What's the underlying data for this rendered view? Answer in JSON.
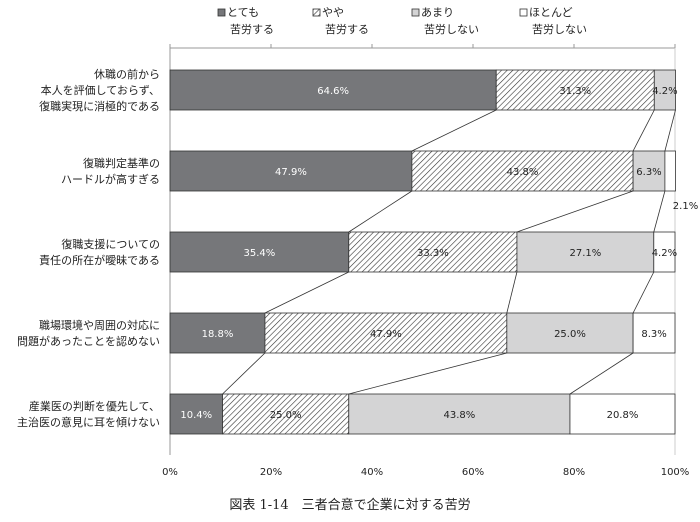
{
  "chart_data": {
    "type": "bar",
    "orientation": "horizontal",
    "stacked": true,
    "caption": "図表 1-14　三者合意で企業に対する苦労",
    "categories": [
      [
        "休職の前から",
        "本人を評価しておらず、",
        "復職実現に消極的である"
      ],
      [
        "復職判定基準の",
        "ハードルが高すぎる"
      ],
      [
        "復職支援についての",
        "責任の所在が曖昧である"
      ],
      [
        "職場環境や周囲の対応に",
        "問題があったことを認めない"
      ],
      [
        "産業医の判断を優先して、",
        "主治医の意見に耳を傾けない"
      ]
    ],
    "series": [
      {
        "name": [
          "とても",
          "苦労する"
        ],
        "values": [
          64.6,
          47.9,
          35.4,
          18.8,
          10.4
        ],
        "color": "#76777a",
        "pattern": "solid"
      },
      {
        "name": [
          "やや",
          "苦労する"
        ],
        "values": [
          31.3,
          43.8,
          33.3,
          47.9,
          25.0
        ],
        "color": "#ffffff",
        "pattern": "hatch"
      },
      {
        "name": [
          "あまり",
          "苦労しない"
        ],
        "values": [
          4.2,
          6.3,
          27.1,
          25.0,
          43.8
        ],
        "color": "#d4d4d5",
        "pattern": "solid"
      },
      {
        "name": [
          "ほとんど",
          "苦労しない"
        ],
        "values": [
          0,
          2.1,
          4.2,
          8.3,
          20.8
        ],
        "color": "#ffffff",
        "pattern": "solid"
      }
    ],
    "value_labels": [
      [
        "64.6%",
        "31.3%",
        "4.2%",
        ""
      ],
      [
        "47.9%",
        "43.8%",
        "6.3%",
        "2.1%"
      ],
      [
        "35.4%",
        "33.3%",
        "27.1%",
        "4.2%"
      ],
      [
        "18.8%",
        "47.9%",
        "25.0%",
        "8.3%"
      ],
      [
        "10.4%",
        "25.0%",
        "43.8%",
        "20.8%"
      ]
    ],
    "xlim": [
      0,
      100
    ],
    "xticks": [
      "0%",
      "20%",
      "40%",
      "60%",
      "80%",
      "100%"
    ],
    "legend_position": "top",
    "series_lines": true,
    "grid": false
  }
}
